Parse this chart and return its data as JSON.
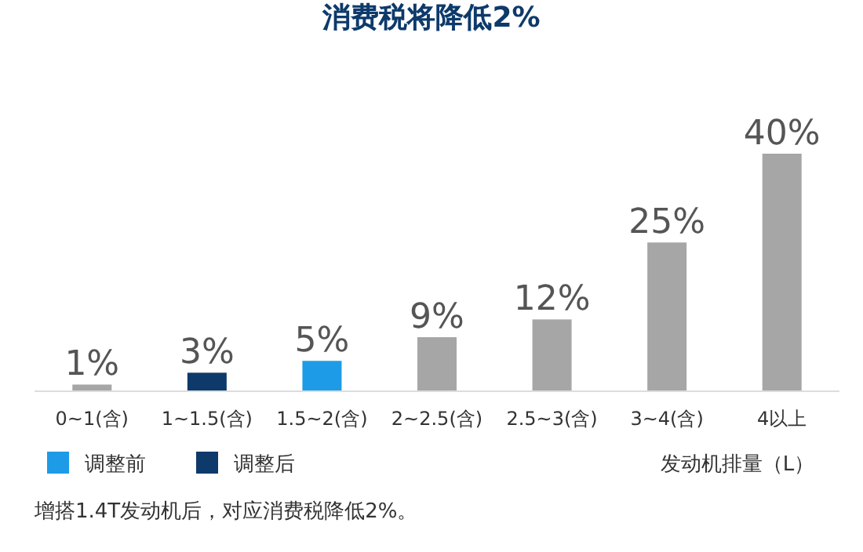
{
  "chart_data": {
    "type": "bar",
    "title": "消费税将降低2%",
    "xlabel": "发动机排量（L）",
    "categories": [
      "0~1(含)",
      "1~1.5(含)",
      "1.5~2(含)",
      "2~2.5(含)",
      "2.5~3(含)",
      "3~4(含)",
      "4以上"
    ],
    "legend": "bottom left",
    "series": [
      {
        "color": "#a6a6a6",
        "values": [
          1,
          null,
          null,
          9,
          12,
          25,
          40
        ],
        "value_labels": [
          "1%",
          null,
          null,
          "9%",
          "12%",
          "25%",
          "40%"
        ]
      },
      {
        "name": "调整前",
        "color": "#1e9be6",
        "values": [
          null,
          null,
          5,
          null,
          null,
          null,
          null
        ],
        "value_labels": [
          null,
          null,
          "5%",
          null,
          null,
          null,
          null
        ]
      },
      {
        "name": "调整后",
        "color": "#0d3a6b",
        "values": [
          null,
          3,
          null,
          null,
          null,
          null,
          null
        ],
        "value_labels": [
          null,
          "3%",
          null,
          null,
          null,
          null,
          null
        ]
      }
    ],
    "annotations": [
      "增搭1.4T发动机后，对应消费税降低2%。"
    ]
  }
}
